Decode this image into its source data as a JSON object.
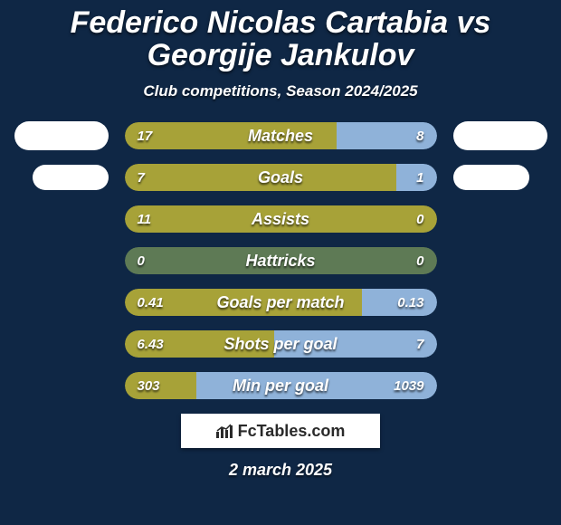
{
  "background_color": "#0f2745",
  "title": "Federico Nicolas Cartabia vs Georgije Jankulov",
  "title_fontsize": 34,
  "subtitle": "Club competitions, Season 2024/2025",
  "subtitle_fontsize": 17,
  "date": "2 march 2025",
  "date_fontsize": 18,
  "brand": "FcTables.com",
  "bar": {
    "left_color": "#a7a238",
    "right_color": "#8fb2d9",
    "half_color": "#5e7a55",
    "label_fontsize": 18,
    "value_fontsize": 15
  },
  "rows": [
    {
      "label": "Matches",
      "left_val": "17",
      "right_val": "8",
      "left_pct": 68,
      "right_pct": 32,
      "chip": "lg"
    },
    {
      "label": "Goals",
      "left_val": "7",
      "right_val": "1",
      "left_pct": 87,
      "right_pct": 13,
      "chip": "md"
    },
    {
      "label": "Assists",
      "left_val": "11",
      "right_val": "0",
      "left_pct": 100,
      "right_pct": 0,
      "chip": null
    },
    {
      "label": "Hattricks",
      "left_val": "0",
      "right_val": "0",
      "left_pct": 50,
      "right_pct": 50,
      "chip": null,
      "tie": true
    },
    {
      "label": "Goals per match",
      "left_val": "0.41",
      "right_val": "0.13",
      "left_pct": 76,
      "right_pct": 24,
      "chip": null
    },
    {
      "label": "Shots per goal",
      "left_val": "6.43",
      "right_val": "7",
      "left_pct": 48,
      "right_pct": 52,
      "chip": null
    },
    {
      "label": "Min per goal",
      "left_val": "303",
      "right_val": "1039",
      "left_pct": 23,
      "right_pct": 77,
      "chip": null
    }
  ]
}
